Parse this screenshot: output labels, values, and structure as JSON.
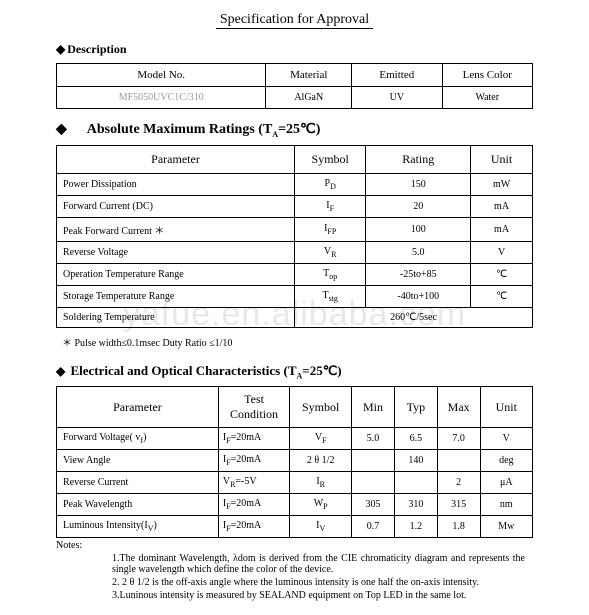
{
  "doc": {
    "title": "Specification for Approval",
    "watermark": "yafue.en.alibaba.com"
  },
  "description": {
    "heading": "Description",
    "headers": {
      "c1": "Model No.",
      "c2": "Material",
      "c3": "Emitted",
      "c4": "Lens Color"
    },
    "values": {
      "c1": "MF5050UVC1C/310",
      "c2": "AlGaN",
      "c3": "UV",
      "c4": "Water"
    }
  },
  "amr": {
    "heading_prefix": "Absolute Maximum Ratings (T",
    "heading_sub": "A",
    "heading_suffix": "=25℃)",
    "cols": {
      "param": "Parameter",
      "symbol": "Symbol",
      "rating": "Rating",
      "unit": "Unit"
    },
    "rows": [
      {
        "param": "Power Dissipation",
        "symbol": "P",
        "symbol_sub": "D",
        "rating": "150",
        "unit": "mW"
      },
      {
        "param": "Forward Current (DC)",
        "symbol": "I",
        "symbol_sub": "F",
        "rating": "20",
        "unit": "mA"
      },
      {
        "param": "Peak Forward Current ＊",
        "symbol": "I",
        "symbol_sub": "FP",
        "rating": "100",
        "unit": "mA"
      },
      {
        "param": "Reverse Voltage",
        "symbol": "V",
        "symbol_sub": "R",
        "rating": "5.0",
        "unit": "V"
      },
      {
        "param": "Operation Temperature Range",
        "symbol": "T",
        "symbol_sub": "op",
        "rating": "-25to+85",
        "unit": "℃"
      },
      {
        "param": "Storage Temperature Range",
        "symbol": "T",
        "symbol_sub": "stg",
        "rating": "-40to+100",
        "unit": "℃"
      }
    ],
    "solder": {
      "param": "Soldering Temperature",
      "value": "260℃/5sec"
    },
    "star_note": "＊ Pulse width≤0.1msec     Duty Ratio ≤1/10"
  },
  "eoc": {
    "heading_prefix": "Electrical and Optical Characteristics (T",
    "heading_sub": "A",
    "heading_suffix": "=25℃)",
    "cols": {
      "param": "Parameter",
      "cond": "Test Condition",
      "symbol": "Symbol",
      "min": "Min",
      "typ": "Typ",
      "max": "Max",
      "unit": "Unit"
    },
    "rows": [
      {
        "param": "Forward Voltage( v",
        "param_sub": "f",
        "param_tail": ")",
        "cond": "I",
        "cond_sub": "F",
        "cond_tail": "=20mA",
        "symbol": "V",
        "symbol_sub": "F",
        "min": "5.0",
        "typ": "6.5",
        "max": "7.0",
        "unit": "V"
      },
      {
        "param": "View Angle",
        "cond": "I",
        "cond_sub": "F",
        "cond_tail": "=20mA",
        "symbol": "2 θ 1/2",
        "min": "",
        "typ": "140",
        "max": "",
        "unit": "deg"
      },
      {
        "param": "Reverse Current",
        "cond": "V",
        "cond_sub": "R",
        "cond_tail": "=-5V",
        "symbol": "I",
        "symbol_sub": "R",
        "min": "",
        "typ": "",
        "max": "2",
        "unit": "μA"
      },
      {
        "param": "Peak Wavelength",
        "cond": "I",
        "cond_sub": "F",
        "cond_tail": "=20mA",
        "symbol": "W",
        "symbol_sub": "P",
        "min": "305",
        "typ": "310",
        "max": "315",
        "unit": "nm"
      },
      {
        "param": "Luminous Intensity(I",
        "param_sub": "V",
        "param_tail": ")",
        "cond": "I",
        "cond_sub": "F",
        "cond_tail": "=20mA",
        "symbol": "I",
        "symbol_sub": "V",
        "min": "0.7",
        "typ": "1.2",
        "max": "1.8",
        "unit": "Mw"
      }
    ],
    "notes_label": "Notes:",
    "notes": [
      "1.The dominant Wavelength, λdom is derived from the CIE chromaticity diagram and represents the single wavelength which define the color of the device.",
      "2. 2 θ 1/2 is the off-axis angle where the luminous intensity is one half the on-axis intensity.",
      "3.Luninous intensity is measured by SEALAND equipment on Top LED in the same lot."
    ]
  }
}
